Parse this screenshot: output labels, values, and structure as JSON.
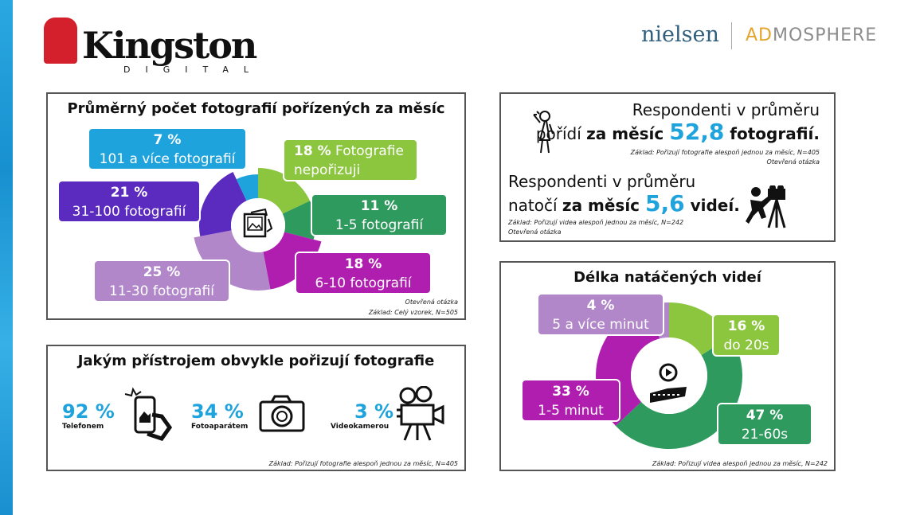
{
  "header": {
    "kingston_logo": "Kingston",
    "kingston_sub": "DIGITAL",
    "nielsen_logo": "nielsen",
    "admosphere_a": "AD",
    "admosphere_b": "MOSPHERE"
  },
  "colors": {
    "stat_blue": "#1fa3dc"
  },
  "chart_data": [
    {
      "type": "pie",
      "title": "Průměrný počet fotografií pořízených za měsíc",
      "slices": [
        {
          "pct": "18 %",
          "label": "Fotografie nepořizuji",
          "value": 18,
          "color": "#8cc63f"
        },
        {
          "pct": "11 %",
          "label": "1-5 fotografií",
          "value": 11,
          "color": "#2e9a5e"
        },
        {
          "pct": "18 %",
          "label": "6-10 fotografií",
          "value": 18,
          "color": "#b01eb0"
        },
        {
          "pct": "25 %",
          "label": "11-30 fotografií",
          "value": 25,
          "color": "#b187c9"
        },
        {
          "pct": "21 %",
          "label": "31-100 fotografií",
          "value": 21,
          "color": "#5b2bbf"
        },
        {
          "pct": "7 %",
          "label": "101 a více fotografií",
          "value": 7,
          "color": "#1fa3dc"
        }
      ],
      "note1": "Otevřená otázka",
      "note2": "Základ: Celý vzorek, N=505"
    },
    {
      "type": "pie",
      "title": "Délka natáčených videí",
      "slices": [
        {
          "pct": "16 %",
          "label": "do 20s",
          "value": 16,
          "color": "#8cc63f"
        },
        {
          "pct": "47 %",
          "label": "21-60s",
          "value": 47,
          "color": "#2e9a5e"
        },
        {
          "pct": "33 %",
          "label": "1-5 minut",
          "value": 33,
          "color": "#b01eb0"
        },
        {
          "pct": "4 %",
          "label": "5 a více minut",
          "value": 4,
          "color": "#b187c9"
        }
      ],
      "note": "Základ: Pořizují videa alespoň jednou za měsíc, N=242"
    }
  ],
  "devices": {
    "title": "Jakým přístrojem obvykle pořizují fotografie",
    "items": [
      {
        "pct": "92 %",
        "label": "Telefonem"
      },
      {
        "pct": "34 %",
        "label": "Fotoaparátem"
      },
      {
        "pct": "3 %",
        "label": "Videokamerou"
      }
    ],
    "note": "Základ: Pořizují fotografie alespoň jednou za měsíc, N=405"
  },
  "averages": {
    "photo_l1": "Respondenti v průměru",
    "photo_a": "pořídí ",
    "photo_b": "za měsíc ",
    "photo_val": "52,8",
    "photo_c": " fotografií.",
    "photo_note1": "Základ: Pořizují fotografie alespoň jednou za měsíc, N=405",
    "photo_note2": "Otevřená otázka",
    "video_l1": "Respondenti v průměru",
    "video_a": "natočí ",
    "video_b": "za měsíc ",
    "video_val": "5,6",
    "video_c": " videí.",
    "video_note1": "Základ: Pořizují videa alespoň jednou za měsíc, N=242",
    "video_note2": "Otevřená otázka"
  }
}
